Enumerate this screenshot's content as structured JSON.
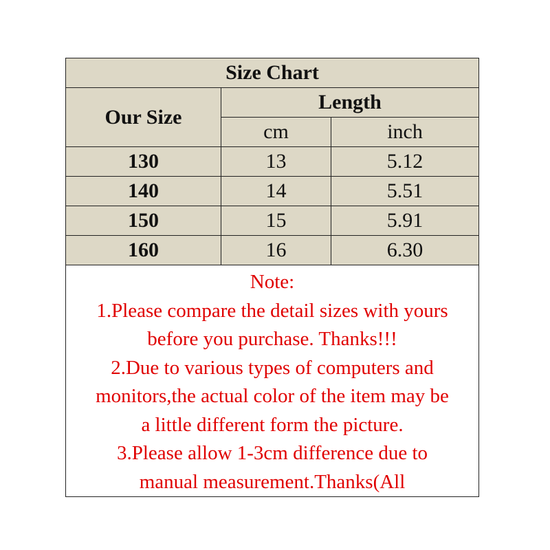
{
  "title": "Size Chart",
  "headers": {
    "size": "Our Size",
    "length": "Length",
    "cm": "cm",
    "inch": "inch"
  },
  "colors": {
    "header_bg": "#ddd8c6",
    "note_text": "#e00000"
  },
  "rows": [
    {
      "size": "130",
      "cm": "13",
      "inch": "5.12"
    },
    {
      "size": "140",
      "cm": "14",
      "inch": "5.51"
    },
    {
      "size": "150",
      "cm": "15",
      "inch": "5.91"
    },
    {
      "size": "160",
      "cm": "16",
      "inch": "6.30"
    }
  ],
  "note": {
    "heading": "Note:",
    "lines": [
      "1.Please compare the detail sizes with yours",
      "before you purchase. Thanks!!!",
      "2.Due to various types of computers and",
      "monitors,the actual color of the item may be",
      "a little different form the picture.",
      "3.Please allow 1-3cm difference due to",
      "manual measurement.Thanks(All"
    ]
  }
}
